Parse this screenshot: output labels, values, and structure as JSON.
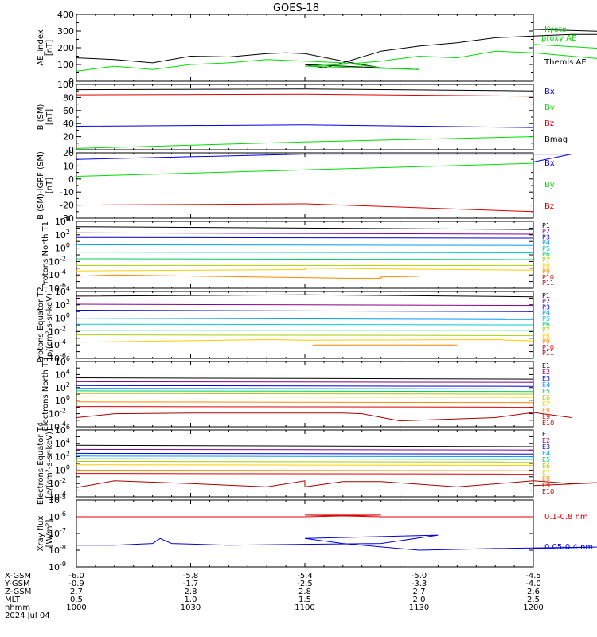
{
  "title": "GOES-18",
  "colors": {
    "black": "#000000",
    "red": "#dd0000",
    "green": "#00dd00",
    "blue": "#0000dd",
    "p1": "#000000",
    "p2": "#880088",
    "p3": "#0000cc",
    "p4": "#0099ff",
    "p5": "#00cccc",
    "p6": "#00cc66",
    "p7": "#aacc00",
    "p8": "#ffcc00",
    "p9": "#ff8800",
    "p10": "#dd0000",
    "p11": "#aa0000"
  },
  "time_axis": {
    "rows": [
      {
        "label": "X-GSM",
        "values": [
          "-6.0",
          "-5.8",
          "-5.4",
          "-5.0",
          "-4.5"
        ]
      },
      {
        "label": "Y-GSM",
        "values": [
          "-0.9",
          "-1.7",
          "-2.5",
          "-3.3",
          "-4.0"
        ]
      },
      {
        "label": "Z-GSM",
        "values": [
          "2.7",
          "2.8",
          "2.8",
          "2.7",
          "2.6"
        ]
      },
      {
        "label": "MLT",
        "values": [
          "0.5",
          "1.0",
          "1.5",
          "2.0",
          "2.5"
        ]
      },
      {
        "label": "hhmm",
        "values": [
          "1000",
          "1030",
          "1100",
          "1130",
          "1200"
        ]
      }
    ],
    "date": "2024 Jul 04"
  },
  "chart_data": [
    {
      "type": "line",
      "ylabel": "AE_index [nT]",
      "ylim": [
        0,
        400
      ],
      "yscale": "linear",
      "yticks": [
        "0",
        "100",
        "200",
        "300",
        "400"
      ],
      "series": [
        {
          "name": "Themis AE",
          "color": "#000000",
          "x": [
            1000,
            1010,
            1020,
            1030,
            1040,
            1050,
            1055,
            1060,
            1070,
            1080,
            1090,
            1100,
            1105,
            1110,
            1120,
            1130,
            1140,
            1150,
            1160,
            1170,
            1180,
            1190,
            1200
          ],
          "y": [
            140,
            130,
            110,
            150,
            145,
            165,
            170,
            165,
            120,
            80,
            70,
            100,
            80,
            110,
            180,
            210,
            230,
            260,
            270,
            280,
            280,
            290,
            310
          ]
        },
        {
          "name": "Kyoto proxy AE",
          "color": "#00dd00",
          "x": [
            1000,
            1010,
            1020,
            1030,
            1040,
            1050,
            1060,
            1070,
            1080,
            1090,
            1100,
            1110,
            1120,
            1130,
            1140,
            1150,
            1160,
            1170,
            1180,
            1190,
            1200
          ],
          "y": [
            60,
            90,
            70,
            100,
            110,
            130,
            120,
            110,
            80,
            70,
            90,
            100,
            120,
            150,
            140,
            180,
            170,
            150,
            130,
            180,
            220
          ]
        }
      ]
    },
    {
      "type": "line",
      "ylabel": "B (SM) [nT]",
      "ylim": [
        0,
        100
      ],
      "yscale": "linear",
      "yticks": [
        "0",
        "20",
        "40",
        "60",
        "80",
        "100"
      ],
      "series": [
        {
          "name": "Bx",
          "color": "#0000dd",
          "x": [
            1000,
            1100,
            1200
          ],
          "y": [
            36,
            38,
            34
          ]
        },
        {
          "name": "By",
          "color": "#00dd00",
          "x": [
            1000,
            1100,
            1200
          ],
          "y": [
            2,
            12,
            20
          ]
        },
        {
          "name": "Bz",
          "color": "#dd0000",
          "x": [
            1000,
            1100,
            1200
          ],
          "y": [
            84,
            85,
            82
          ]
        },
        {
          "name": "Bmag",
          "color": "#000000",
          "x": [
            1000,
            1100,
            1200
          ],
          "y": [
            92,
            93,
            90
          ]
        }
      ]
    },
    {
      "type": "line",
      "ylabel": "B (SM)-IGRF (SM) [nT]",
      "ylim": [
        -30,
        20
      ],
      "yscale": "linear",
      "yticks": [
        "-30",
        "-20",
        "-10",
        "0",
        "10",
        "20"
      ],
      "series": [
        {
          "name": "Bx",
          "color": "#0000dd",
          "x": [
            1000,
            1100,
            1170,
            1200
          ],
          "y": [
            15,
            19,
            19,
            13
          ]
        },
        {
          "name": "By",
          "color": "#00dd00",
          "x": [
            1000,
            1100,
            1200
          ],
          "y": [
            2,
            7,
            12
          ]
        },
        {
          "name": "Bz",
          "color": "#dd0000",
          "x": [
            1000,
            1100,
            1200
          ],
          "y": [
            -20,
            -19,
            -25
          ]
        }
      ]
    },
    {
      "type": "line",
      "ylabel": "Protons North T1",
      "ylim": [
        -6,
        4
      ],
      "yscale": "log",
      "yticks_exp": [
        -6,
        -4,
        -2,
        0,
        2,
        4
      ],
      "series": [
        {
          "name": "P1",
          "color": "#000000",
          "x": [
            1000,
            1200
          ],
          "y": [
            3.2,
            2.8
          ]
        },
        {
          "name": "P2",
          "color": "#880088",
          "x": [
            1000,
            1200
          ],
          "y": [
            2.3,
            2.1
          ]
        },
        {
          "name": "P3",
          "color": "#0000cc",
          "x": [
            1000,
            1200
          ],
          "y": [
            1.6,
            1.5
          ]
        },
        {
          "name": "P4",
          "color": "#0099ff",
          "x": [
            1000,
            1200
          ],
          "y": [
            0.5,
            0.4
          ]
        },
        {
          "name": "P5",
          "color": "#00cccc",
          "x": [
            1000,
            1200
          ],
          "y": [
            -0.6,
            -0.7
          ]
        },
        {
          "name": "P6",
          "color": "#00cc66",
          "x": [
            1000,
            1200
          ],
          "y": [
            -1.6,
            -1.7
          ]
        },
        {
          "name": "P7",
          "color": "#aacc00",
          "x": [
            1000,
            1200
          ],
          "y": [
            -2.6,
            -2.6
          ]
        },
        {
          "name": "P8",
          "color": "#ffcc00",
          "x": [
            1000,
            1060,
            1100,
            1200
          ],
          "y": [
            -3.4,
            -3.2,
            -3.0,
            -3.3
          ]
        },
        {
          "name": "P9",
          "color": "#ff8800",
          "x": [
            1000,
            1010,
            1070,
            1080,
            1120,
            1130
          ],
          "y": [
            -4.2,
            -4.0,
            -4.5,
            -4.5,
            -4.3,
            -4.2
          ]
        },
        {
          "name": "P10",
          "color": "#dd0000",
          "x": [],
          "y": []
        },
        {
          "name": "P11",
          "color": "#aa0000",
          "x": [],
          "y": []
        }
      ]
    },
    {
      "type": "line",
      "ylabel": "Protons Equator T2 [p/(cm²-s-sr-keV)]",
      "ylim": [
        -6,
        4
      ],
      "yscale": "log",
      "yticks_exp": [
        -6,
        -4,
        -2,
        0,
        2,
        4
      ],
      "series": [
        {
          "name": "P1",
          "color": "#000000",
          "x": [
            1000,
            1100,
            1200
          ],
          "y": [
            3.3,
            3.5,
            3.2
          ]
        },
        {
          "name": "P2",
          "color": "#880088",
          "x": [
            1000,
            1200
          ],
          "y": [
            2.1,
            1.9
          ]
        },
        {
          "name": "P3",
          "color": "#0000cc",
          "x": [
            1000,
            1200
          ],
          "y": [
            1.2,
            1.0
          ]
        },
        {
          "name": "P4",
          "color": "#0099ff",
          "x": [
            1000,
            1200
          ],
          "y": [
            0.0,
            -0.2
          ]
        },
        {
          "name": "P5",
          "color": "#00cccc",
          "x": [
            1000,
            1200
          ],
          "y": [
            -0.9,
            -1.0
          ]
        },
        {
          "name": "P6",
          "color": "#00cc66",
          "x": [
            1000,
            1200
          ],
          "y": [
            -1.8,
            -1.8
          ]
        },
        {
          "name": "P7",
          "color": "#aacc00",
          "x": [
            1000,
            1200
          ],
          "y": [
            -2.5,
            -2.6
          ]
        },
        {
          "name": "P8",
          "color": "#ffcc00",
          "x": [
            1000,
            1050,
            1100,
            1150,
            1200
          ],
          "y": [
            -3.6,
            -3.2,
            -3.3,
            -3.2,
            -3.4
          ]
        },
        {
          "name": "P9",
          "color": "#ff8800",
          "x": [
            1102,
            1112,
            1132,
            1140
          ],
          "y": [
            -4.0,
            -4.0,
            -4.0,
            -4.0
          ]
        },
        {
          "name": "P10",
          "color": "#dd0000",
          "x": [],
          "y": []
        },
        {
          "name": "P11",
          "color": "#aa0000",
          "x": [],
          "y": []
        }
      ]
    },
    {
      "type": "line",
      "ylabel": "Electrons North T3",
      "ylim": [
        -4,
        6
      ],
      "yscale": "log",
      "yticks_exp": [
        -4,
        -2,
        0,
        2,
        4,
        6
      ],
      "series": [
        {
          "name": "E1",
          "color": "#000000",
          "x": [
            1000,
            1200
          ],
          "y": [
            3.5,
            3.3
          ]
        },
        {
          "name": "E2",
          "color": "#880088",
          "x": [
            1000,
            1200
          ],
          "y": [
            2.9,
            2.8
          ]
        },
        {
          "name": "E3",
          "color": "#0000cc",
          "x": [
            1000,
            1200
          ],
          "y": [
            2.3,
            2.2
          ]
        },
        {
          "name": "E4",
          "color": "#0099ff",
          "x": [
            1000,
            1200
          ],
          "y": [
            1.9,
            1.8
          ]
        },
        {
          "name": "E5",
          "color": "#00cc66",
          "x": [
            1000,
            1200
          ],
          "y": [
            1.5,
            1.4
          ]
        },
        {
          "name": "E6",
          "color": "#aacc00",
          "x": [
            1000,
            1200
          ],
          "y": [
            1.1,
            1.0
          ]
        },
        {
          "name": "E7",
          "color": "#ffcc00",
          "x": [
            1000,
            1200
          ],
          "y": [
            0.6,
            0.5
          ]
        },
        {
          "name": "E8",
          "color": "#ff8800",
          "x": [
            1000,
            1200
          ],
          "y": [
            -0.2,
            -0.3
          ]
        },
        {
          "name": "E9",
          "color": "#dd0000",
          "x": [
            1000,
            1200
          ],
          "y": [
            -0.9,
            -1.0
          ]
        },
        {
          "name": "E10",
          "color": "#aa0000",
          "x": [
            1000,
            1010,
            1030,
            1070,
            1075,
            1085,
            1150,
            1160,
            1170
          ],
          "y": [
            -2.6,
            -2.0,
            -1.9,
            -1.9,
            -2.0,
            -3.1,
            -2.6,
            -1.8,
            -2.6
          ]
        }
      ]
    },
    {
      "type": "line",
      "ylabel": "Electrons Equator T4 [e/(cm²-s-sr-keV)]",
      "ylim": [
        -4,
        6
      ],
      "yscale": "log",
      "yticks_exp": [
        -4,
        -2,
        0,
        2,
        4,
        6
      ],
      "series": [
        {
          "name": "E1",
          "color": "#000000",
          "x": [
            1000,
            1200
          ],
          "y": [
            3.7,
            3.5
          ]
        },
        {
          "name": "E2",
          "color": "#880088",
          "x": [
            1000,
            1200
          ],
          "y": [
            3.1,
            3.0
          ]
        },
        {
          "name": "E3",
          "color": "#0000cc",
          "x": [
            1000,
            1200
          ],
          "y": [
            2.5,
            2.4
          ]
        },
        {
          "name": "E4",
          "color": "#0099ff",
          "x": [
            1000,
            1200
          ],
          "y": [
            2.1,
            2.0
          ]
        },
        {
          "name": "E5",
          "color": "#00cc66",
          "x": [
            1000,
            1200
          ],
          "y": [
            1.7,
            1.6
          ]
        },
        {
          "name": "E6",
          "color": "#aacc00",
          "x": [
            1000,
            1200
          ],
          "y": [
            1.3,
            1.2
          ]
        },
        {
          "name": "E7",
          "color": "#ffcc00",
          "x": [
            1000,
            1200
          ],
          "y": [
            0.8,
            0.7
          ]
        },
        {
          "name": "E8",
          "color": "#ff8800",
          "x": [
            1000,
            1200
          ],
          "y": [
            0.0,
            -0.1
          ]
        },
        {
          "name": "E9",
          "color": "#dd0000",
          "x": [
            1000,
            1200
          ],
          "y": [
            -0.5,
            -0.6
          ]
        },
        {
          "name": "E10",
          "color": "#aa0000",
          "x": [
            1000,
            1010,
            1020,
            1030,
            1050,
            1060,
            1100,
            1110,
            1120,
            1140,
            1160,
            1170,
            1190,
            1200
          ],
          "y": [
            -2.6,
            -1.6,
            -1.8,
            -2.0,
            -2.5,
            -1.6,
            -2.5,
            -1.7,
            -1.7,
            -2.5,
            -1.6,
            -2.0,
            -1.6,
            -2.3
          ]
        }
      ]
    },
    {
      "type": "line",
      "ylabel": "Xray flux [W/m²]",
      "ylim": [
        -9,
        -5
      ],
      "yscale": "log",
      "yticks_exp": [
        -9,
        -8,
        -7,
        -6,
        -5
      ],
      "series": [
        {
          "name": "0.1-0.8 nm",
          "color": "#dd0000",
          "x": [
            1000,
            1060,
            1080,
            1100,
            1120,
            1140,
            1200
          ],
          "y": [
            -6.0,
            -6.0,
            -5.9,
            -5.9,
            -6.0,
            -6.0,
            -6.0
          ]
        },
        {
          "name": "0.05-0.4 nm",
          "color": "#0000dd",
          "x": [
            1000,
            1010,
            1020,
            1022,
            1025,
            1040,
            1080,
            1095,
            1100,
            1110,
            1130,
            1150,
            1180,
            1200
          ],
          "y": [
            -7.7,
            -7.7,
            -7.6,
            -7.3,
            -7.6,
            -7.7,
            -7.6,
            -7.1,
            -7.3,
            -7.6,
            -8.0,
            -7.9,
            -7.8,
            -7.9
          ]
        }
      ]
    }
  ]
}
